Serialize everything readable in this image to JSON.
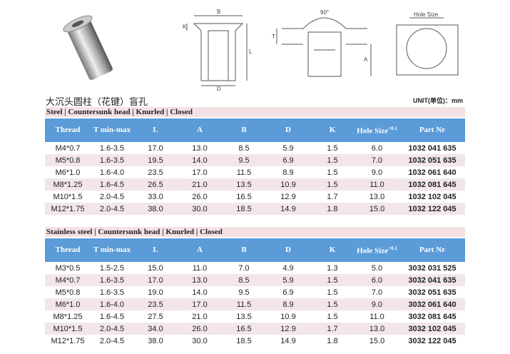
{
  "drawings": {
    "b": "B",
    "k": "K",
    "d": "D",
    "l": "L",
    "t": "T",
    "a": "A",
    "angle": "90°",
    "hole": "Hole Size"
  },
  "header": {
    "title": "大沉头圆柱（花键）盲孔",
    "unit": "UNIT(单位)：mm"
  },
  "columns": [
    "Thread",
    "T min-max",
    "L",
    "A",
    "B",
    "D",
    "K",
    "Hole Size",
    "Part Nr"
  ],
  "hole_tolerance": "+0.1",
  "tables": [
    {
      "title": "Steel | Countersunk head | Knurled | Closed",
      "rows": [
        [
          "M4*0.7",
          "1.6-3.5",
          "17.0",
          "13.0",
          "8.5",
          "5.9",
          "1.5",
          "6.0",
          "1032 041 635"
        ],
        [
          "M5*0.8",
          "1.6-3.5",
          "19.5",
          "14.0",
          "9.5",
          "6.9",
          "1.5",
          "7.0",
          "1032 051 635"
        ],
        [
          "M6*1.0",
          "1.6-4.0",
          "23.5",
          "17.0",
          "11.5",
          "8.9",
          "1.5",
          "9.0",
          "1032 061 640"
        ],
        [
          "M8*1.25",
          "1.6-4.5",
          "26.5",
          "21.0",
          "13.5",
          "10.9",
          "1.5",
          "11.0",
          "1032 081 645"
        ],
        [
          "M10*1.5",
          "2.0-4.5",
          "33.0",
          "26.0",
          "16.5",
          "12.9",
          "1.7",
          "13.0",
          "1032 102 045"
        ],
        [
          "M12*1.75",
          "2.0-4.5",
          "38.0",
          "30.0",
          "18.5",
          "14.9",
          "1.8",
          "15.0",
          "1032 122 045"
        ]
      ]
    },
    {
      "title": "Stainless steel | Countersunk head | Knurled | Closed",
      "rows": [
        [
          "M3*0.5",
          "1.5-2.5",
          "15.0",
          "11.0",
          "7.0",
          "4.9",
          "1.3",
          "5.0",
          "3032 031 525"
        ],
        [
          "M4*0.7",
          "1.6-3.5",
          "17.0",
          "13.0",
          "8.5",
          "5.9",
          "1.5",
          "6.0",
          "3032 041 635"
        ],
        [
          "M5*0.8",
          "1.6-3.5",
          "19.0",
          "14.0",
          "9.5",
          "6.9",
          "1.5",
          "7.0",
          "3032 051 635"
        ],
        [
          "M6*1.0",
          "1.6-4.0",
          "23.5",
          "17.0",
          "11.5",
          "8.9",
          "1.5",
          "9.0",
          "3032 061 640"
        ],
        [
          "M8*1.25",
          "1.6-4.5",
          "27.5",
          "21.0",
          "13.5",
          "10.9",
          "1.5",
          "11.0",
          "3032 081 645"
        ],
        [
          "M10*1.5",
          "2.0-4.5",
          "34.0",
          "26.0",
          "16.5",
          "12.9",
          "1.7",
          "13.0",
          "3032 102 045"
        ],
        [
          "M12*1.75",
          "2.0-4.5",
          "38.0",
          "30.0",
          "18.5",
          "14.9",
          "1.8",
          "15.0",
          "3032 122 045"
        ]
      ]
    }
  ]
}
